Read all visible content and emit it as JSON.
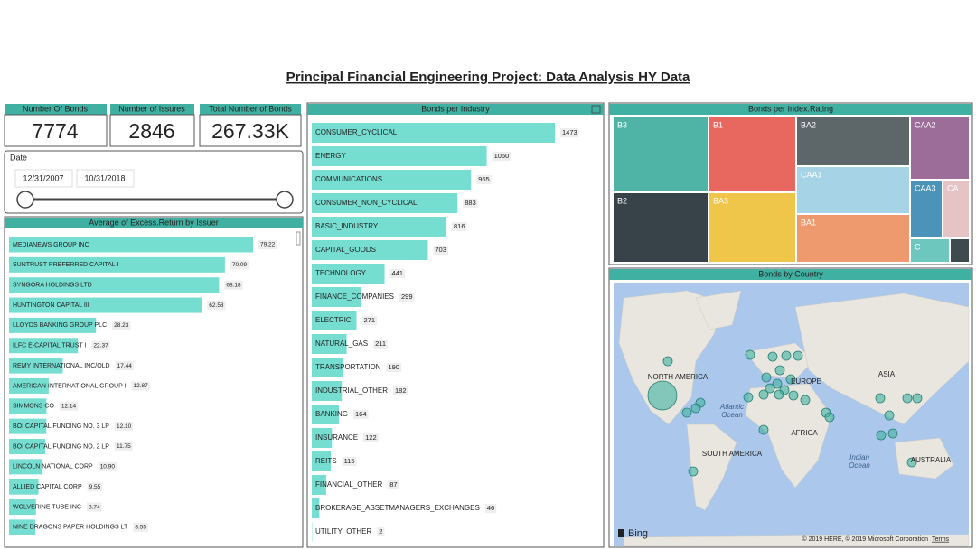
{
  "title": "Principal Financial Engineering Project: Data Analysis HY Data",
  "cards": [
    {
      "label": "Number  Of Bonds",
      "value": "7774"
    },
    {
      "label": "Number of  Issures",
      "value": "2846"
    },
    {
      "label": "Total Number of Bonds",
      "value": "267.33K"
    }
  ],
  "date_slicer": {
    "label": "Date",
    "start": "12/31/2007",
    "end": "10/31/2018"
  },
  "issuer_chart": {
    "title": "Average of Excess.Return by Issuer",
    "categories": [
      "MEDIANEWS GROUP INC",
      "SUNTRUST PREFERRED CAPITAL I",
      "SYNGORA HOLDINGS LTD",
      "HUNTINGTON CAPITAL III",
      "LLOYDS BANKING GROUP PLC",
      "ILFC E-CAPITAL TRUST I",
      "REMY INTERNATIONAL INC/OLD",
      "AMERICAN INTERNATIONAL GROUP I",
      "SIMMONS CO",
      "BOI CAPITAL FUNDING NO. 3 LP",
      "BOI CAPITAL FUNDING NO. 2 LP",
      "LINCOLN NATIONAL CORP",
      "ALLIED CAPITAL CORP",
      "WOLVERINE TUBE INC",
      "NINE DRAGONS PAPER HOLDINGS LT"
    ],
    "values": [
      79.22,
      70.09,
      68.18,
      62.58,
      28.23,
      22.37,
      17.44,
      12.87,
      12.14,
      12.1,
      11.75,
      10.9,
      9.55,
      8.74,
      8.55
    ],
    "value_labels": [
      "79.22",
      "70.09",
      "68.18",
      "62.58",
      "28.23",
      "22.37",
      "17.44",
      "12.87",
      "12.14",
      "12.10",
      "11.75",
      "10.90",
      "9.55",
      "8.74",
      "8.55"
    ]
  },
  "industry_chart": {
    "title": "Bonds per Industry",
    "categories": [
      "CONSUMER_CYCLICAL",
      "ENERGY",
      "COMMUNICATIONS",
      "CONSUMER_NON_CYCLICAL",
      "BASIC_INDUSTRY",
      "CAPITAL_GOODS",
      "TECHNOLOGY",
      "FINANCE_COMPANIES",
      "ELECTRIC",
      "NATURAL_GAS",
      "TRANSPORTATION",
      "INDUSTRIAL_OTHER",
      "BANKING",
      "INSURANCE",
      "REITS",
      "FINANCIAL_OTHER",
      "BROKERAGE_ASSETMANAGERS_EXCHANGES",
      "UTILITY_OTHER"
    ],
    "values": [
      1473,
      1060,
      965,
      883,
      816,
      703,
      441,
      299,
      271,
      211,
      190,
      182,
      164,
      122,
      115,
      87,
      46,
      2
    ]
  },
  "treemap": {
    "title": "Bonds per Index.Rating",
    "labels": [
      "B3",
      "B2",
      "B1",
      "BA3",
      "BA2",
      "CAA1",
      "BA1",
      "CAA2",
      "CAA3",
      "CA",
      "C"
    ]
  },
  "map": {
    "title": "Bonds by Country",
    "labels": [
      "NORTH AMERICA",
      "Atlantic\nOcean",
      "EUROPE",
      "ASIA",
      "AFRICA",
      "SOUTH AMERICA",
      "Indian\nOcean",
      "AUSTRALIA"
    ],
    "attribution": "© 2019 HERE, © 2019 Microsoft Corporation",
    "terms": "Terms",
    "logo": "Bing"
  }
}
